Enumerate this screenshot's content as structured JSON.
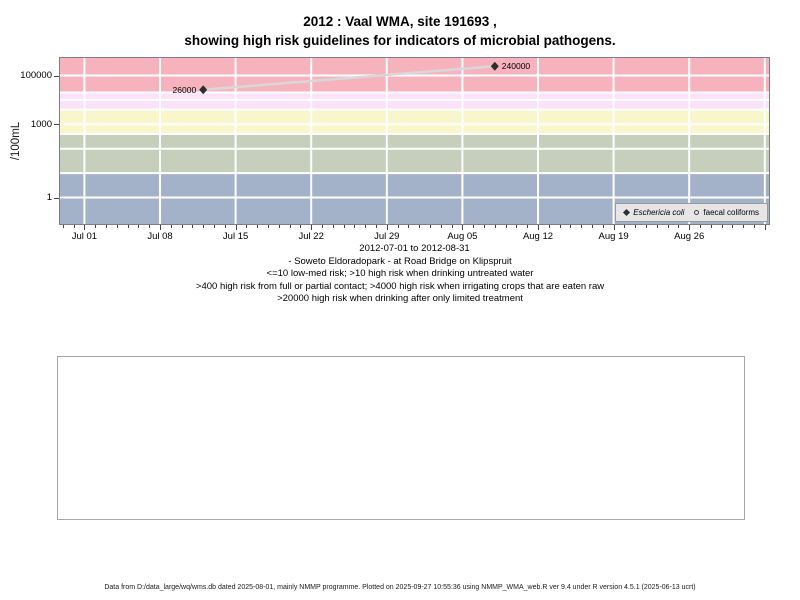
{
  "header": {
    "title_line1": "2012 : Vaal WMA, site 191693 ,",
    "title_line2": "showing high risk guidelines for indicators of microbial pathogens."
  },
  "chart_data": {
    "type": "line",
    "y_scale": "log10",
    "ylabel": "/100mL",
    "x_axis_label": "2012-07-01 to 2012-08-31",
    "xlim_days": [
      -2.35,
      63.5
    ],
    "ylim_log": [
      -1.13,
      5.76
    ],
    "grid_on": true,
    "x_ticks": [
      {
        "label": "Jul 01",
        "day": 0
      },
      {
        "label": "Jul 08",
        "day": 7
      },
      {
        "label": "Jul 15",
        "day": 14
      },
      {
        "label": "Jul 22",
        "day": 21
      },
      {
        "label": "Jul 29",
        "day": 28
      },
      {
        "label": "Aug 05",
        "day": 35
      },
      {
        "label": "Aug 12",
        "day": 42
      },
      {
        "label": "Aug 19",
        "day": 49
      },
      {
        "label": "Aug 26",
        "day": 56
      }
    ],
    "y_ticks": [
      {
        "label": "1",
        "value": 1
      },
      {
        "label": "1000",
        "value": 1000
      },
      {
        "label": "100000",
        "value": 100000
      }
    ],
    "grid_values": [
      1,
      10,
      100,
      400,
      1000,
      4000,
      10000,
      20000,
      100000
    ],
    "grid_days": [
      0,
      7,
      14,
      21,
      28,
      35,
      42,
      49,
      56,
      63
    ],
    "bands": [
      {
        "name": "high-risk-limited-treatment-drinking",
        "range": [
          20000,
          575000
        ],
        "color": "#f7b3bd"
      },
      {
        "name": "high-risk-irrigating-raw-crops",
        "range": [
          4000,
          20000
        ],
        "color": "#fce2f8"
      },
      {
        "name": "high-risk-full-partial-contact",
        "range": [
          400,
          4000
        ],
        "color": "#faf6cc"
      },
      {
        "name": "high-risk-untreated-water",
        "range": [
          10,
          400
        ],
        "color": "#c5cfbb"
      },
      {
        "name": "low-med-risk",
        "range": [
          0.074,
          10
        ],
        "color": "#a3b1c9"
      }
    ],
    "series": [
      {
        "name": "Eschericia coli",
        "marker": "filled-diamond",
        "line_color": "#d8d8d8",
        "point_color": "#2e2e2e",
        "points": [
          {
            "day": 11,
            "date": "Jul 12",
            "value": 26000,
            "label": "26000",
            "label_side": "left"
          },
          {
            "day": 38,
            "date": "Aug 08",
            "value": 240000,
            "label": "240000",
            "label_side": "right"
          }
        ]
      },
      {
        "name": "faecal coliforms",
        "marker": "open-circle",
        "line_color": "#d8d8d8",
        "point_color": "#2e2e2e",
        "points": []
      }
    ],
    "legend": {
      "position": "bottom-right",
      "items": [
        {
          "label": "Eschericia coli",
          "marker": "filled-diamond",
          "italic": true
        },
        {
          "label": "faecal coliforms",
          "marker": "open-circle",
          "italic": false
        }
      ]
    }
  },
  "caption": {
    "lines": [
      "- Soweto Eldoradopark - at Road Bridge on Klipspruit",
      "<=10 low-med risk; >10 high risk when drinking untreated water",
      ">400 high risk from full or partial contact; >4000 high risk when irrigating crops that are eaten raw",
      ">20000 high risk when drinking after only limited treatment"
    ]
  },
  "footer": {
    "text": "Data from D:/data_large/wq/wms.db dated 2025-08-01, mainly NMMP programme. Plotted on 2025-09-27 10:55:36 using NMMP_WMA_web.R ver 9.4 under R version 4.5.1 (2025-06-13 ucrt)"
  }
}
